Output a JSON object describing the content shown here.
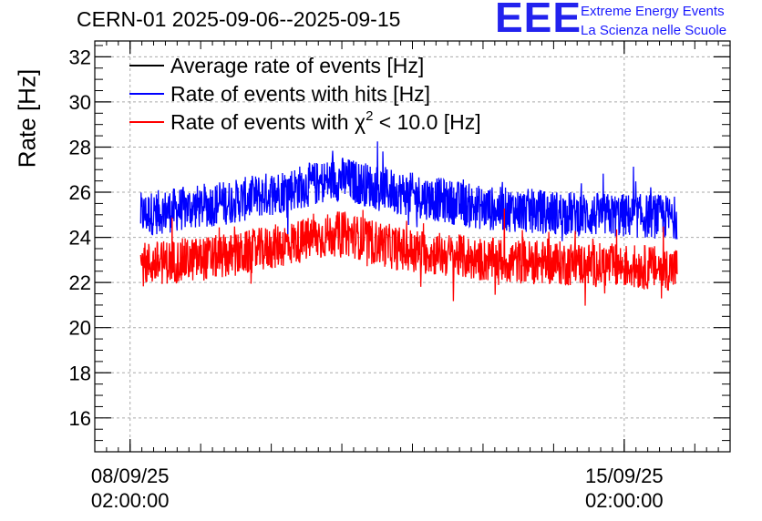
{
  "header": {
    "title": "CERN-01 2025-09-06--2025-09-15",
    "logo_text": "EEE",
    "logo_line1": "Extreme Energy Events",
    "logo_line2": "La Scienza nelle Scuole"
  },
  "colors": {
    "average": "#000000",
    "hits": "#0000ff",
    "chi2": "#ff0000",
    "grid": "#aaaaaa",
    "logo": "#2222ee"
  },
  "chart_data": {
    "type": "line",
    "ylabel": "Rate [Hz]",
    "ylim": [
      14.5,
      32.7
    ],
    "yticks": [
      16,
      18,
      20,
      22,
      24,
      26,
      28,
      30,
      32
    ],
    "x_unit": "days",
    "xlim_days": [
      -0.5,
      8.5
    ],
    "xticks": [
      {
        "x": 0,
        "line1": "08/09/25",
        "line2": "02:00:00"
      },
      {
        "x": 7,
        "line1": "15/09/25",
        "line2": "02:00:00"
      }
    ],
    "x_range_days": [
      0.15,
      7.75
    ],
    "grid": true,
    "legend_position": "top-left",
    "series": [
      {
        "name": "Average rate of events [Hz]",
        "color": "#000000",
        "values": []
      },
      {
        "name": "Rate of events with hits [Hz]",
        "color": "#0000ff",
        "baseline": 25.3,
        "noise": 0.55,
        "trend": [
          [
            0.15,
            25.0
          ],
          [
            1.5,
            25.6
          ],
          [
            2.5,
            26.3
          ],
          [
            3.0,
            26.6
          ],
          [
            3.8,
            26.0
          ],
          [
            5.0,
            25.3
          ],
          [
            6.5,
            25.0
          ],
          [
            7.75,
            24.9
          ]
        ]
      },
      {
        "name": "Rate of events with χ² < 10.0 [Hz]",
        "color": "#ff0000",
        "baseline": 23.0,
        "noise": 0.55,
        "trend": [
          [
            0.15,
            22.8
          ],
          [
            1.5,
            23.2
          ],
          [
            2.5,
            23.9
          ],
          [
            3.0,
            24.2
          ],
          [
            3.8,
            23.5
          ],
          [
            5.0,
            23.0
          ],
          [
            6.5,
            22.8
          ],
          [
            7.75,
            22.6
          ]
        ]
      }
    ]
  },
  "legend": {
    "average": "Average rate of events [Hz]",
    "hits": "Rate of events with hits [Hz]",
    "chi2_prefix": "Rate of events with ",
    "chi2_symbol": "χ",
    "chi2_sup": "2",
    "chi2_suffix": " < 10.0 [Hz]"
  }
}
